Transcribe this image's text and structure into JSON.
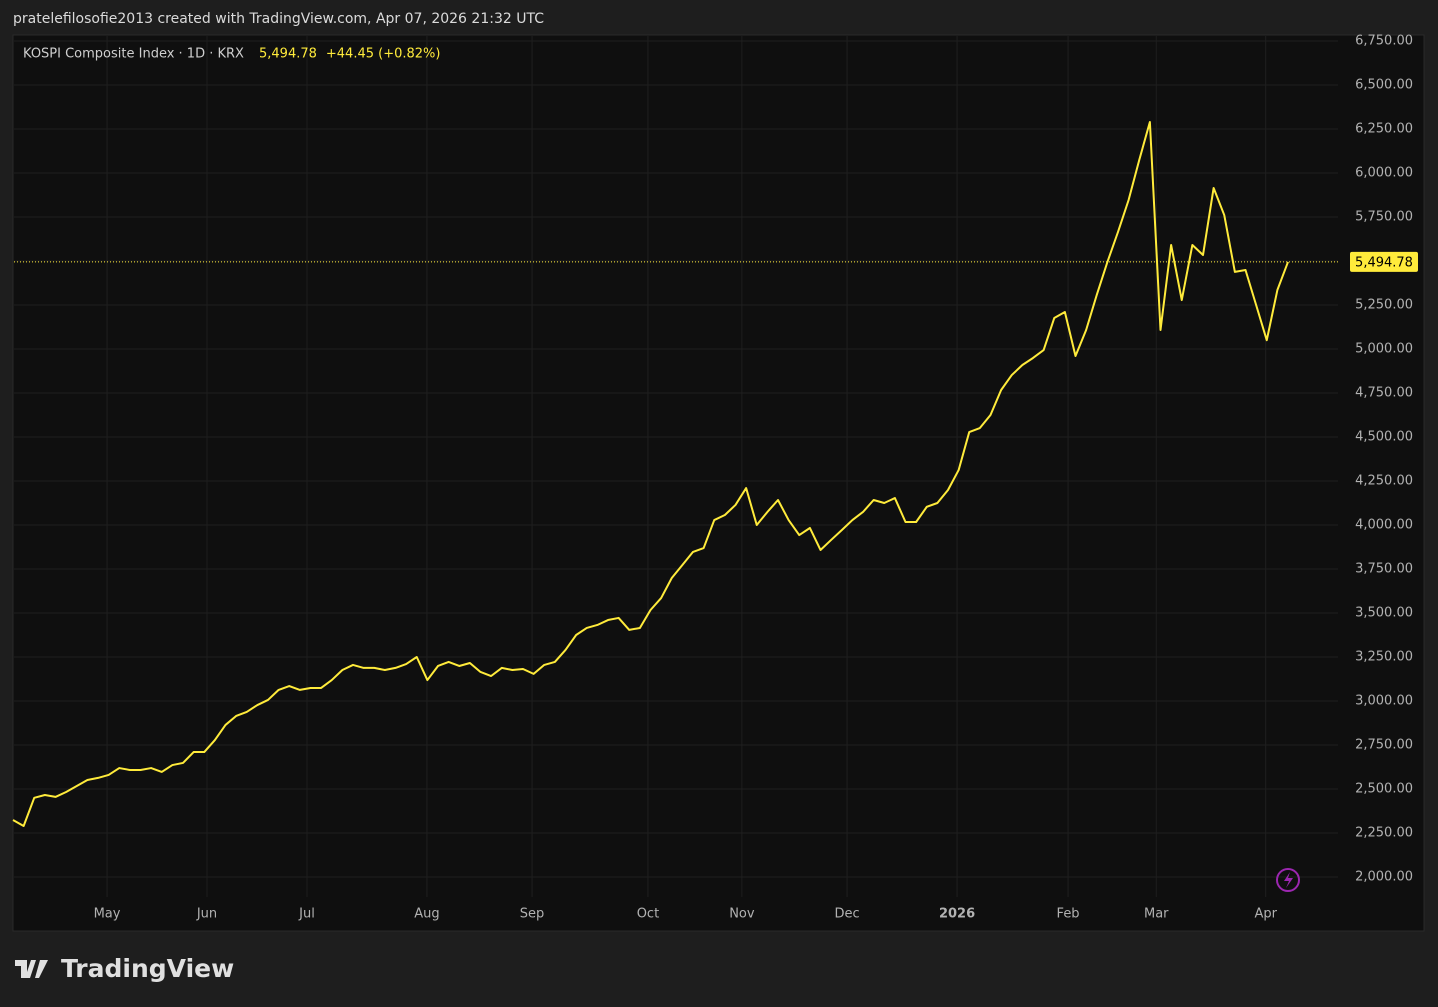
{
  "header": "pratelefilosofie2013 created with TradingView.com, Apr 07, 2026 21:32 UTC",
  "footer_logo": "TradingView",
  "chart_data": {
    "type": "line",
    "symbol": "KOSPI Composite Index · 1D · KRX",
    "last_price_label": "5,494.78",
    "change": "+44.45 (+0.82%)",
    "color": "#ffeb3b",
    "grid": true,
    "values": [
      2324,
      2290,
      2450,
      2466,
      2455,
      2483,
      2517,
      2551,
      2563,
      2580,
      2619,
      2608,
      2608,
      2619,
      2597,
      2636,
      2648,
      2710,
      2710,
      2778,
      2864,
      2915,
      2938,
      2977,
      3006,
      3063,
      3085,
      3063,
      3074,
      3074,
      3119,
      3176,
      3205,
      3188,
      3188,
      3176,
      3188,
      3210,
      3250,
      3119,
      3199,
      3222,
      3199,
      3216,
      3165,
      3142,
      3188,
      3176,
      3182,
      3154,
      3205,
      3222,
      3290,
      3375,
      3415,
      3432,
      3460,
      3472,
      3404,
      3415,
      3517,
      3585,
      3699,
      3773,
      3847,
      3869,
      4028,
      4057,
      4114,
      4210,
      4000,
      4074,
      4142,
      4028,
      3943,
      3983,
      3858,
      3915,
      3971,
      4028,
      4074,
      4142,
      4125,
      4153,
      4017,
      4017,
      4103,
      4125,
      4199,
      4312,
      4528,
      4551,
      4625,
      4767,
      4852,
      4909,
      4949,
      4994,
      5176,
      5210,
      4960,
      5108,
      5307,
      5494,
      5665,
      5847,
      6074,
      6290,
      5108,
      5591,
      5278,
      5591,
      5534,
      5915,
      5761,
      5438,
      5449,
      5250,
      5050,
      5335,
      5494.78
    ],
    "xlim": [
      0,
      120
    ],
    "xticks": [
      {
        "value": 8.85,
        "label": "May"
      },
      {
        "value": 18.26,
        "label": "Jun"
      },
      {
        "value": 27.67,
        "label": "Jul"
      },
      {
        "value": 38.96,
        "label": "Aug"
      },
      {
        "value": 48.85,
        "label": "Sep"
      },
      {
        "value": 59.76,
        "label": "Oct"
      },
      {
        "value": 68.6,
        "label": "Nov"
      },
      {
        "value": 78.5,
        "label": "Dec"
      },
      {
        "value": 88.85,
        "label": "2026"
      },
      {
        "value": 99.3,
        "label": "Feb"
      },
      {
        "value": 107.6,
        "label": "Mar"
      },
      {
        "value": 117.9,
        "label": "Apr"
      }
    ],
    "ylim": [
      2000,
      6750
    ],
    "yticks": [
      {
        "value": 2000,
        "label": "2,000.00"
      },
      {
        "value": 2250,
        "label": "2,250.00"
      },
      {
        "value": 2500,
        "label": "2,500.00"
      },
      {
        "value": 2750,
        "label": "2,750.00"
      },
      {
        "value": 3000,
        "label": "3,000.00"
      },
      {
        "value": 3250,
        "label": "3,250.00"
      },
      {
        "value": 3500,
        "label": "3,500.00"
      },
      {
        "value": 3750,
        "label": "3,750.00"
      },
      {
        "value": 4000,
        "label": "4,000.00"
      },
      {
        "value": 4250,
        "label": "4,250.00"
      },
      {
        "value": 4500,
        "label": "4,500.00"
      },
      {
        "value": 4750,
        "label": "4,750.00"
      },
      {
        "value": 5000,
        "label": "5,000.00"
      },
      {
        "value": 5250,
        "label": "5,250.00"
      },
      {
        "value": 5500,
        "label": "5,500.00"
      },
      {
        "value": 5750,
        "label": "5,750.00"
      },
      {
        "value": 6000,
        "label": "6,000.00"
      },
      {
        "value": 6250,
        "label": "6,250.00"
      },
      {
        "value": 6500,
        "label": "6,500.00"
      },
      {
        "value": 6750,
        "label": "6,750.00"
      }
    ]
  }
}
